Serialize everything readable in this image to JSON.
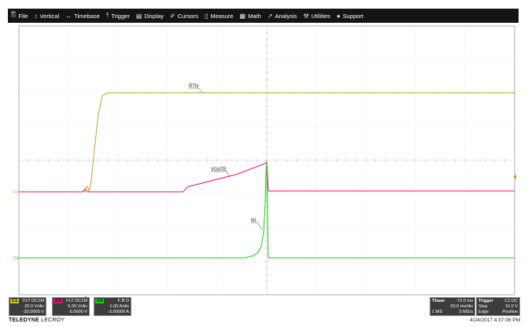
{
  "menu": [
    {
      "label": "File",
      "icon": "file-icon",
      "glyph": "🖺"
    },
    {
      "label": "Vertical",
      "icon": "vertical-arrows-icon",
      "glyph": "↕"
    },
    {
      "label": "Timebase",
      "icon": "horizontal-arrows-icon",
      "glyph": "↔"
    },
    {
      "label": "Trigger",
      "icon": "trigger-icon",
      "glyph": "⤒"
    },
    {
      "label": "Display",
      "icon": "display-icon",
      "glyph": "▤"
    },
    {
      "label": "Cursors",
      "icon": "cursor-icon",
      "glyph": "✐"
    },
    {
      "label": "Measure",
      "icon": "measure-icon",
      "glyph": "▯"
    },
    {
      "label": "Math",
      "icon": "math-icon",
      "glyph": "▦"
    },
    {
      "label": "Analysis",
      "icon": "analysis-icon",
      "glyph": "↗"
    },
    {
      "label": "Utilities",
      "icon": "tools-icon",
      "glyph": "⚒"
    },
    {
      "label": "Support",
      "icon": "info-icon",
      "glyph": "●"
    }
  ],
  "waveforms": {
    "rtn_label": "RTN",
    "vgate_label": "VGATE",
    "in_label": "IN",
    "c1_marker": "C1",
    "c3_marker": "C3",
    "c4_marker": "C4",
    "c1_color": "#b5a81e",
    "c3_color": "#e0147a",
    "c4_color": "#16d016"
  },
  "channels": [
    {
      "tag": "C1",
      "coupling": "FLT DC1M",
      "scale": "20.0 V/div",
      "offset": "-20.0000 V",
      "color": "#d4c62a"
    },
    {
      "tag": "C3",
      "coupling": "FLT DC1M",
      "scale": "5.00 V/div",
      "offset": "-5.0000 V",
      "color": "#e0147a"
    },
    {
      "tag": "C4",
      "coupling": "F B D",
      "scale": "1.00 A/div",
      "offset": "-3.00000 A",
      "color": "#16d016"
    }
  ],
  "timebase": {
    "title": "Tbase",
    "delay": "-72.0 ms",
    "per_div": "20.0 ms/div",
    "samples": "1 MS",
    "rate": "5 MS/s"
  },
  "trigger": {
    "title": "Trigger",
    "source": "C1 DC",
    "mode": "Stop",
    "level": "10.0 V",
    "type": "Edge",
    "slope": "Positive"
  },
  "brand": {
    "name": "TELEDYNE",
    "suffix": " LECROY"
  },
  "timestamp": "4/24/2017 4:37:06 PM"
}
